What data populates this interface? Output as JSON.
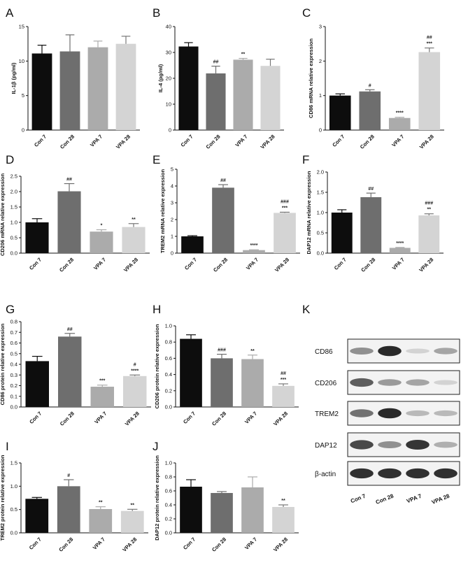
{
  "chart_data": [
    {
      "id": "A",
      "type": "bar",
      "ylabel": "IL-1β (pg/ml)",
      "ylim": [
        0,
        15
      ],
      "ticks": [
        0,
        5,
        10,
        15
      ],
      "categories": [
        "Con 7",
        "Con 28",
        "VPA 7",
        "VPA 28"
      ],
      "values": [
        11.1,
        11.4,
        12.0,
        12.5
      ],
      "errors": [
        1.2,
        2.4,
        0.9,
        1.1
      ],
      "annotations": [
        [],
        [],
        [],
        []
      ],
      "colors": [
        "#0d0d0d",
        "#6e6e6e",
        "#ababab",
        "#d4d4d4"
      ]
    },
    {
      "id": "B",
      "type": "bar",
      "ylabel": "IL-4 (pg/ml)",
      "ylim": [
        0,
        40
      ],
      "ticks": [
        0,
        10,
        20,
        30,
        40
      ],
      "categories": [
        "Con 7",
        "Con 28",
        "VPA 7",
        "VPA 28"
      ],
      "values": [
        32.3,
        21.9,
        27.2,
        24.8
      ],
      "errors": [
        1.5,
        2.8,
        0.5,
        2.6
      ],
      "annotations": [
        [],
        [
          "##"
        ],
        [
          "**"
        ],
        []
      ],
      "colors": [
        "#0d0d0d",
        "#6e6e6e",
        "#ababab",
        "#d4d4d4"
      ]
    },
    {
      "id": "C",
      "type": "bar",
      "ylabel": "CD86 mRNA relative expression",
      "ylim": [
        0,
        3
      ],
      "ticks": [
        0,
        1,
        2,
        3
      ],
      "categories": [
        "Con 7",
        "Con 28",
        "VPA 7",
        "VPA 28"
      ],
      "values": [
        1.0,
        1.12,
        0.35,
        2.26
      ],
      "errors": [
        0.05,
        0.05,
        0.02,
        0.12
      ],
      "annotations": [
        [],
        [
          "#"
        ],
        [
          "****"
        ],
        [
          "##",
          "***"
        ]
      ],
      "colors": [
        "#0d0d0d",
        "#6e6e6e",
        "#ababab",
        "#d4d4d4"
      ]
    },
    {
      "id": "D",
      "type": "bar",
      "ylabel": "CD206 mRNA relative expression",
      "ylim": [
        0,
        2.5
      ],
      "ticks": [
        0.0,
        0.5,
        1.0,
        1.5,
        2.0,
        2.5
      ],
      "categories": [
        "Con 7",
        "Con 28",
        "VPA 7",
        "VPA 28"
      ],
      "values": [
        1.0,
        2.01,
        0.7,
        0.85
      ],
      "errors": [
        0.12,
        0.25,
        0.06,
        0.11
      ],
      "annotations": [
        [],
        [
          "##"
        ],
        [
          "*"
        ],
        [
          "**"
        ]
      ],
      "colors": [
        "#0d0d0d",
        "#6e6e6e",
        "#ababab",
        "#d4d4d4"
      ]
    },
    {
      "id": "E",
      "type": "bar",
      "ylabel": "TREM2 mRNA relative expression",
      "ylim": [
        0,
        5
      ],
      "ticks": [
        0,
        1,
        2,
        3,
        4,
        5
      ],
      "categories": [
        "Con 7",
        "Con 28",
        "VPA 7",
        "VPA 28"
      ],
      "values": [
        1.0,
        3.9,
        0.18,
        2.4
      ],
      "errors": [
        0.04,
        0.18,
        0.02,
        0.04
      ],
      "annotations": [
        [],
        [
          "##"
        ],
        [
          "****"
        ],
        [
          "###",
          "***"
        ]
      ],
      "colors": [
        "#0d0d0d",
        "#6e6e6e",
        "#ababab",
        "#d4d4d4"
      ]
    },
    {
      "id": "F",
      "type": "bar",
      "ylabel": "DAP12 mRNA relative expression",
      "ylim": [
        0,
        2.0
      ],
      "ticks": [
        0.0,
        0.5,
        1.0,
        1.5,
        2.0
      ],
      "categories": [
        "Con 7",
        "Con 28",
        "VPA 7",
        "VPA 28"
      ],
      "values": [
        1.0,
        1.38,
        0.13,
        0.93
      ],
      "errors": [
        0.07,
        0.1,
        0.01,
        0.04
      ],
      "annotations": [
        [],
        [
          "##"
        ],
        [
          "****"
        ],
        [
          "###",
          "**"
        ]
      ],
      "colors": [
        "#0d0d0d",
        "#6e6e6e",
        "#ababab",
        "#d4d4d4"
      ]
    },
    {
      "id": "G",
      "type": "bar",
      "ylabel": "CD86 protein relative expression",
      "ylim": [
        0,
        0.8
      ],
      "ticks": [
        0.0,
        0.1,
        0.2,
        0.3,
        0.4,
        0.5,
        0.6,
        0.7,
        0.8
      ],
      "categories": [
        "Con 7",
        "Con 28",
        "VPA 7",
        "VPA 28"
      ],
      "values": [
        0.43,
        0.66,
        0.19,
        0.29
      ],
      "errors": [
        0.045,
        0.03,
        0.015,
        0.01
      ],
      "annotations": [
        [],
        [
          "##"
        ],
        [
          "***"
        ],
        [
          "#",
          "****"
        ]
      ],
      "colors": [
        "#0d0d0d",
        "#6e6e6e",
        "#ababab",
        "#d4d4d4"
      ]
    },
    {
      "id": "H",
      "type": "bar",
      "ylabel": "CD206 protein relative expression",
      "ylim": [
        0,
        1.0
      ],
      "ticks": [
        0.0,
        0.2,
        0.4,
        0.6,
        0.8,
        1.0
      ],
      "categories": [
        "Con 7",
        "Con 28",
        "VPA 7",
        "VPA 28"
      ],
      "values": [
        0.84,
        0.6,
        0.59,
        0.26
      ],
      "errors": [
        0.05,
        0.05,
        0.05,
        0.025
      ],
      "annotations": [
        [],
        [
          "###"
        ],
        [
          "**"
        ],
        [
          "##",
          "***"
        ]
      ],
      "colors": [
        "#0d0d0d",
        "#6e6e6e",
        "#ababab",
        "#d4d4d4"
      ]
    },
    {
      "id": "I",
      "type": "bar",
      "ylabel": "TREM2  protein relative expression",
      "ylim": [
        0,
        1.5
      ],
      "ticks": [
        0.0,
        0.5,
        1.0,
        1.5
      ],
      "categories": [
        "Con 7",
        "Con 28",
        "VPA 7",
        "VPA 28"
      ],
      "values": [
        0.73,
        1.0,
        0.51,
        0.47
      ],
      "errors": [
        0.03,
        0.14,
        0.05,
        0.035
      ],
      "annotations": [
        [],
        [
          "#"
        ],
        [
          "**"
        ],
        [
          "**"
        ]
      ],
      "colors": [
        "#0d0d0d",
        "#6e6e6e",
        "#ababab",
        "#d4d4d4"
      ]
    },
    {
      "id": "J",
      "type": "bar",
      "ylabel": "DAP12  protein relative expression",
      "ylim": [
        0,
        1.0
      ],
      "ticks": [
        0.0,
        0.2,
        0.4,
        0.6,
        0.8,
        1.0
      ],
      "categories": [
        "Con 7",
        "Con 28",
        "VPA 7",
        "VPA 28"
      ],
      "values": [
        0.66,
        0.57,
        0.65,
        0.37
      ],
      "errors": [
        0.1,
        0.02,
        0.15,
        0.03
      ],
      "annotations": [
        [],
        [],
        [],
        [
          "**"
        ]
      ],
      "colors": [
        "#0d0d0d",
        "#6e6e6e",
        "#ababab",
        "#d4d4d4"
      ]
    }
  ],
  "western_blot": {
    "id": "K",
    "bands": [
      "CD86",
      "CD206",
      "TREM2",
      "DAP12",
      "β-actin"
    ],
    "lanes": [
      "Con 7",
      "Con 28",
      "VPA 7",
      "VPA 28"
    ],
    "intensity": [
      [
        0.45,
        0.95,
        0.12,
        0.35
      ],
      [
        0.7,
        0.4,
        0.35,
        0.12
      ],
      [
        0.6,
        0.95,
        0.25,
        0.25
      ],
      [
        0.8,
        0.45,
        0.9,
        0.3
      ],
      [
        0.92,
        0.92,
        0.92,
        0.92
      ]
    ]
  }
}
